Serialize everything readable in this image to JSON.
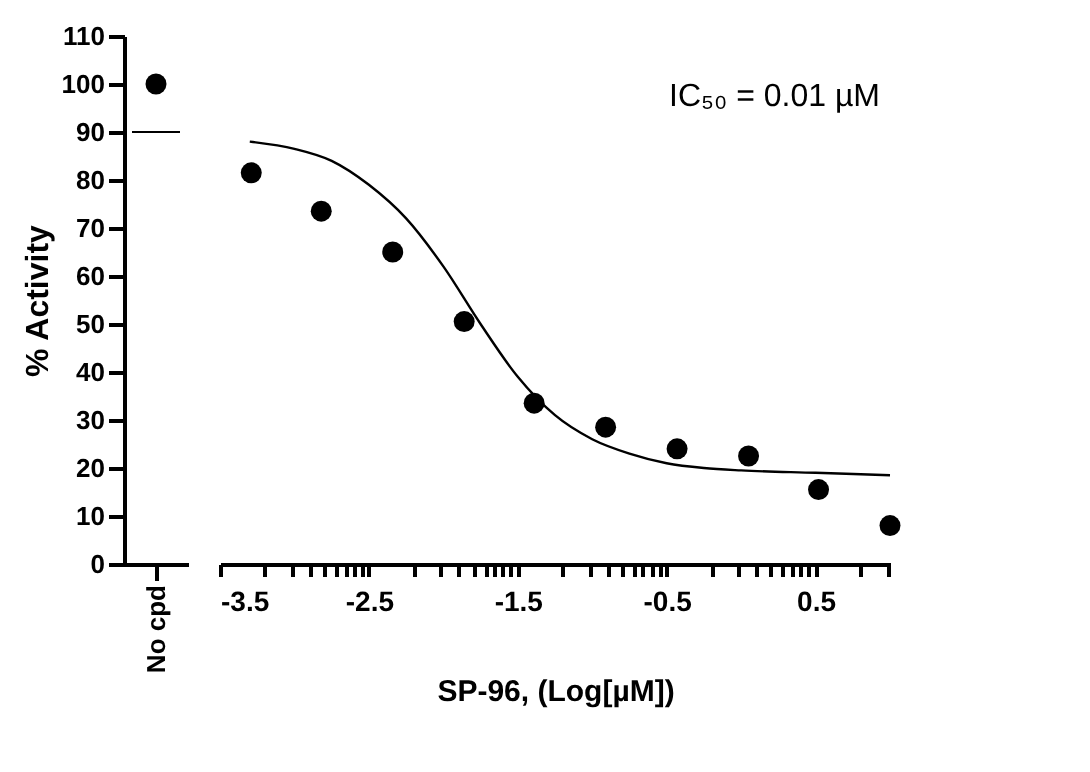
{
  "chart_data": [
    {
      "type": "scatter",
      "categories": [
        "No cpd"
      ],
      "values": [
        100
      ],
      "color": "#000000",
      "marker": "circle",
      "ylabel": "% Activity",
      "ylim": [
        0,
        110
      ],
      "yticks": [
        0,
        10,
        20,
        30,
        40,
        50,
        60,
        70,
        80,
        90,
        100,
        110
      ],
      "grid": false,
      "legend": false,
      "ref_lines": [
        {
          "axis": "y",
          "value": 90,
          "color": "#000000"
        }
      ]
    },
    {
      "type": "scatter",
      "xlabel": "SP-96, (Log[µM])",
      "xlim": [
        -3.5,
        1.0
      ],
      "ylim": [
        0,
        110
      ],
      "tick_labels": "x",
      "grid": false,
      "legend": false,
      "marker": "circle",
      "xticks": [
        -3.5,
        -2.5,
        -1.5,
        -0.5,
        0.5,
        {
          "value": -3.2,
          "label": null
        },
        {
          "value": -3.02,
          "label": null
        },
        {
          "value": -2.9,
          "label": null
        },
        {
          "value": -2.8,
          "label": null
        },
        {
          "value": -2.72,
          "label": null
        },
        {
          "value": -2.66,
          "label": null
        },
        {
          "value": -2.6,
          "label": null
        },
        {
          "value": -2.55,
          "label": null
        },
        {
          "value": -2.2,
          "label": null
        },
        {
          "value": -2.02,
          "label": null
        },
        {
          "value": -1.9,
          "label": null
        },
        {
          "value": -1.8,
          "label": null
        },
        {
          "value": -1.72,
          "label": null
        },
        {
          "value": -1.66,
          "label": null
        },
        {
          "value": -1.6,
          "label": null
        },
        {
          "value": -1.55,
          "label": null
        },
        {
          "value": -1.2,
          "label": null
        },
        {
          "value": -1.02,
          "label": null
        },
        {
          "value": -0.9,
          "label": null
        },
        {
          "value": -0.8,
          "label": null
        },
        {
          "value": -0.72,
          "label": null
        },
        {
          "value": -0.66,
          "label": null
        },
        {
          "value": -0.6,
          "label": null
        },
        {
          "value": -0.55,
          "label": null
        },
        {
          "value": -0.2,
          "label": null
        },
        {
          "value": -0.02,
          "label": null
        },
        {
          "value": 0.1,
          "label": null
        },
        {
          "value": 0.2,
          "label": null
        },
        {
          "value": 0.28,
          "label": null
        },
        {
          "value": 0.34,
          "label": null
        },
        {
          "value": 0.4,
          "label": null
        },
        {
          "value": 0.45,
          "label": null
        },
        {
          "value": 0.8,
          "label": null
        },
        {
          "value": 0.98,
          "label": null
        }
      ],
      "annotations": [
        "IC₅₀ = 0.01 µM"
      ],
      "series": [
        {
          "type": "scatter",
          "color": "#000000",
          "x": [
            -3.29,
            -2.82,
            -2.34,
            -1.86,
            -1.39,
            -0.91,
            -0.43,
            0.05,
            0.52,
            1.0
          ],
          "values": [
            81.5,
            73.5,
            65,
            50.5,
            33.5,
            28.5,
            24,
            22.5,
            15.5,
            8
          ]
        },
        {
          "type": "line",
          "color": "#000000",
          "line_style": "solid",
          "marker": "none",
          "x": [
            -3.3,
            -3.0,
            -2.75,
            -2.5,
            -2.25,
            -2.0,
            -1.75,
            -1.5,
            -1.25,
            -1.0,
            -0.75,
            -0.5,
            -0.25,
            0.0,
            0.5,
            1.0
          ],
          "values": [
            88,
            86.5,
            84,
            79,
            72,
            62,
            50,
            39,
            31,
            26,
            23,
            21,
            20,
            19.5,
            19,
            18.5
          ]
        }
      ]
    }
  ]
}
